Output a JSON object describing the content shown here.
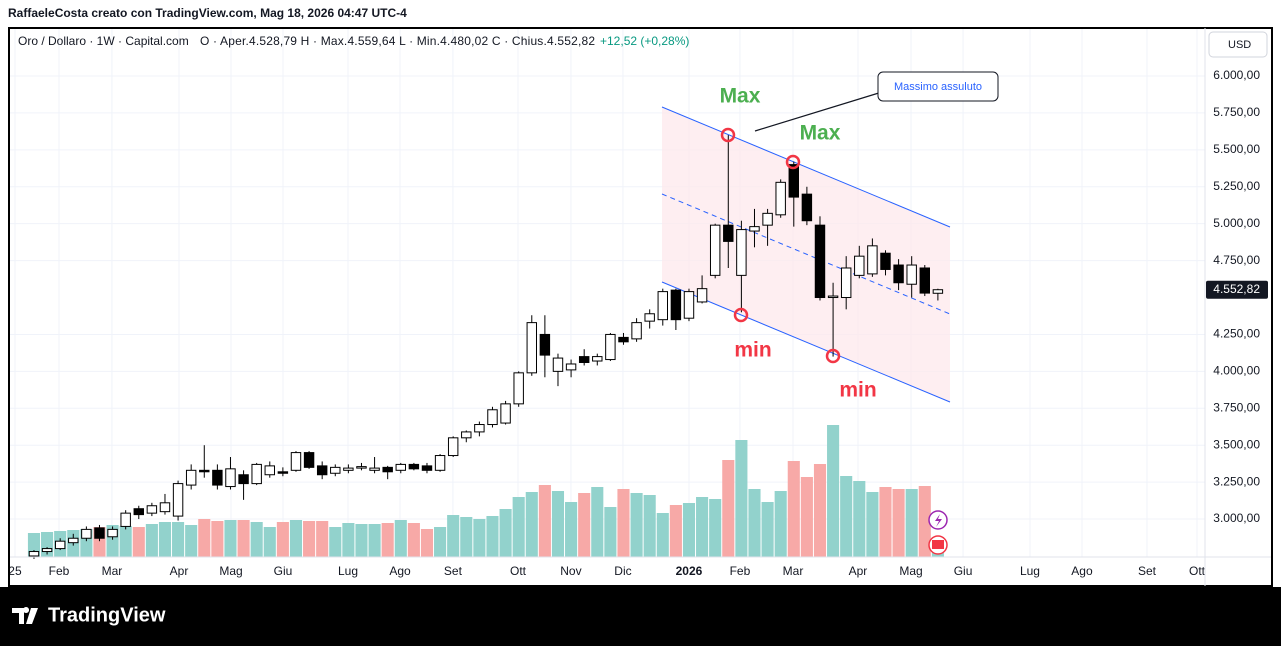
{
  "header": {
    "credit": "RaffaeleCosta creato con TradingView.com, Mag 18, 2026 04:47 UTC-4"
  },
  "legend": {
    "symbol": "Oro / Dollaro · 1W · Capital.com",
    "ohlc": "O · Aper.4.528,79  H · Max.4.559,64  L · Min.4.480,02  C · Chius.4.552,82",
    "change": "+12,52 (+0,28%)"
  },
  "currency": "USD",
  "annotations": {
    "max1": "Max",
    "max2": "Max",
    "min1": "min",
    "min2": "min",
    "callout": "Massimo assuluto"
  },
  "footer": {
    "logo": "TradingView"
  },
  "chart_data": {
    "type": "candlestick",
    "up_color": "#ffffff",
    "down_color": "#000000",
    "wick_color": "#000000",
    "volume_up_color": "#92d2cc",
    "volume_down_color": "#f7a9a7",
    "open": [
      2750,
      2780,
      2800,
      2840,
      2870,
      2940,
      2880,
      2950,
      3070,
      3040,
      3050,
      3020,
      3230,
      3330,
      3330,
      3220,
      3300,
      3240,
      3300,
      3320,
      3330,
      3450,
      3360,
      3310,
      3330,
      3345,
      3330,
      3350,
      3330,
      3370,
      3360,
      3330,
      3430,
      3550,
      3590,
      3640,
      3650,
      3780,
      3990,
      4250,
      4000,
      4010,
      4100,
      4070,
      4080,
      4230,
      4220,
      4340,
      4350,
      4550,
      4360,
      4470,
      4650,
      4990,
      4650,
      4950,
      4990,
      5060,
      5400,
      5200,
      4990,
      4500,
      4500,
      4650,
      4660,
      4800,
      4720,
      4590,
      4700,
      4528.79
    ],
    "high": [
      2790,
      2810,
      2870,
      2900,
      2950,
      2960,
      2950,
      3060,
      3090,
      3110,
      3170,
      3260,
      3370,
      3500,
      3370,
      3420,
      3330,
      3380,
      3390,
      3350,
      3460,
      3460,
      3390,
      3370,
      3370,
      3380,
      3420,
      3360,
      3380,
      3380,
      3380,
      3440,
      3560,
      3600,
      3660,
      3760,
      3800,
      4000,
      4380,
      4380,
      4120,
      4080,
      4150,
      4120,
      4260,
      4260,
      4360,
      4420,
      4560,
      4560,
      4560,
      4650,
      5000,
      5600,
      5020,
      5100,
      5100,
      5300,
      5420,
      5250,
      5050,
      4600,
      4780,
      4850,
      4900,
      4820,
      4760,
      4780,
      4720,
      4559.64
    ],
    "low": [
      2730,
      2760,
      2790,
      2820,
      2850,
      2850,
      2860,
      2930,
      3000,
      3020,
      3030,
      2990,
      3200,
      3280,
      3200,
      3200,
      3130,
      3230,
      3280,
      3290,
      3320,
      3340,
      3270,
      3290,
      3310,
      3330,
      3310,
      3270,
      3310,
      3330,
      3310,
      3320,
      3420,
      3520,
      3560,
      3620,
      3640,
      3760,
      3970,
      3960,
      3900,
      3960,
      4040,
      4040,
      4070,
      4180,
      4200,
      4290,
      4310,
      4280,
      4340,
      4460,
      4630,
      4700,
      4400,
      4840,
      4850,
      5040,
      4980,
      4990,
      4480,
      4100,
      4420,
      4630,
      4640,
      4650,
      4550,
      4500,
      4510,
      4480.02
    ],
    "close": [
      2780,
      2800,
      2850,
      2870,
      2930,
      2870,
      2930,
      3040,
      3030,
      3090,
      3110,
      3240,
      3330,
      3320,
      3230,
      3340,
      3240,
      3370,
      3360,
      3310,
      3450,
      3350,
      3300,
      3350,
      3345,
      3355,
      3345,
      3320,
      3370,
      3340,
      3330,
      3430,
      3550,
      3590,
      3640,
      3740,
      3780,
      3990,
      4330,
      4110,
      4090,
      4050,
      4060,
      4100,
      4250,
      4200,
      4330,
      4390,
      4540,
      4350,
      4540,
      4560,
      4990,
      4880,
      4960,
      4980,
      5070,
      5280,
      5180,
      5020,
      4500,
      4510,
      4700,
      4780,
      4850,
      4690,
      4600,
      4720,
      4530,
      4552.82
    ],
    "volume": [
      24,
      25,
      26,
      27,
      28,
      30,
      32,
      31,
      30,
      33,
      35,
      35,
      32,
      38,
      36,
      37,
      37,
      35,
      30,
      35,
      37,
      36,
      36,
      30,
      34,
      33,
      33,
      34,
      37,
      34,
      28,
      30,
      42,
      40,
      38,
      41,
      48,
      60,
      65,
      72,
      66,
      55,
      64,
      70,
      50,
      68,
      64,
      62,
      44,
      52,
      54,
      60,
      58,
      97,
      117,
      68,
      55,
      66,
      96,
      80,
      93,
      132,
      81,
      76,
      65,
      70,
      68,
      68,
      71,
      20
    ],
    "xlim": [
      -1.83,
      89.39
    ],
    "xticks": [
      {
        "value": -1.45,
        "label": "25"
      },
      {
        "value": 1.91,
        "label": "Feb"
      },
      {
        "value": 5.95,
        "label": "Mar"
      },
      {
        "value": 11.07,
        "label": "Apr"
      },
      {
        "value": 15.04,
        "label": "Mag"
      },
      {
        "value": 19.01,
        "label": "Giu"
      },
      {
        "value": 23.97,
        "label": "Lug"
      },
      {
        "value": 27.94,
        "label": "Ago"
      },
      {
        "value": 31.98,
        "label": "Set"
      },
      {
        "value": 36.95,
        "label": "Ott"
      },
      {
        "value": 40.99,
        "label": "Nov"
      },
      {
        "value": 44.96,
        "label": "Dic"
      },
      {
        "value": 50,
        "label": "2026"
      },
      {
        "value": 53.89,
        "label": "Feb"
      },
      {
        "value": 57.94,
        "label": "Mar"
      },
      {
        "value": 62.9,
        "label": "Apr"
      },
      {
        "value": 66.95,
        "label": "Mag"
      },
      {
        "value": 70.92,
        "label": "Giu"
      },
      {
        "value": 76.03,
        "label": "Lug"
      },
      {
        "value": 80,
        "label": "Ago"
      },
      {
        "value": 84.96,
        "label": "Set"
      },
      {
        "value": 88.78,
        "label": "Ott"
      }
    ],
    "ylim": [
      2743,
      6325
    ],
    "yticks": [
      {
        "value": 3000,
        "label": "3.000,00"
      },
      {
        "value": 3250,
        "label": "3.250,00"
      },
      {
        "value": 3500,
        "label": "3.500,00"
      },
      {
        "value": 3750,
        "label": "3.750,00"
      },
      {
        "value": 4000,
        "label": "4.000,00"
      },
      {
        "value": 4250,
        "label": "4.250,00"
      },
      {
        "value": 4750,
        "label": "4.750,00"
      },
      {
        "value": 5000,
        "label": "5.000,00"
      },
      {
        "value": 5250,
        "label": "5.250,00"
      },
      {
        "value": 5500,
        "label": "5.500,00"
      },
      {
        "value": 5750,
        "label": "5.750,00"
      },
      {
        "value": 6000,
        "label": "6.000,00"
      }
    ],
    "last_price": {
      "value": 4552.82,
      "label": "4.552,82"
    },
    "grid": true
  }
}
